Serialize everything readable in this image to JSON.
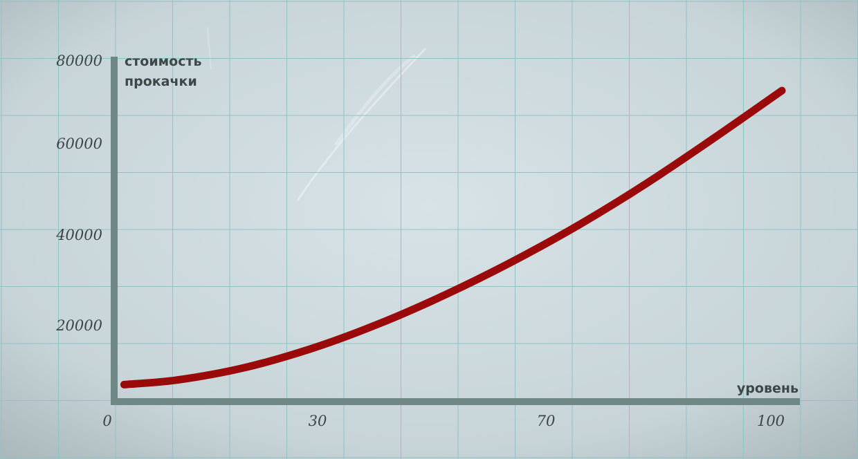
{
  "chart_data": {
    "type": "line",
    "title": "",
    "ylabel": [
      "стоимость",
      "прокачки"
    ],
    "xlabel": "уровень",
    "x_ticks": [
      "0",
      "30",
      "70",
      "100"
    ],
    "y_ticks": [
      "80000",
      "60000",
      "40000",
      "20000"
    ],
    "xlim": [
      0,
      100
    ],
    "ylim": [
      0,
      80000
    ],
    "grid": true,
    "series": [
      {
        "color": "#9b0a0a",
        "x": [
          2,
          10,
          20,
          30,
          40,
          50,
          60,
          70,
          80,
          90,
          100
        ],
        "y": [
          4000,
          5100,
          8000,
          12500,
          18300,
          25200,
          33000,
          41700,
          51400,
          62000,
          73000
        ]
      }
    ]
  },
  "colors": {
    "background": "#c9d6da",
    "grid": "#8fc2c7",
    "axis": "#6f8785",
    "line": "#9b0a0a"
  }
}
